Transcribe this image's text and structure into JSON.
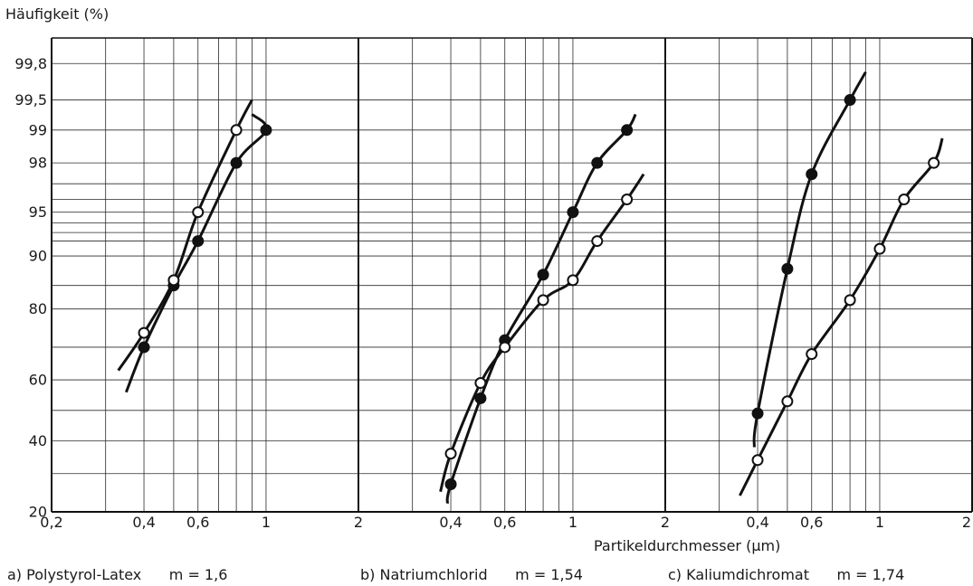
{
  "chart_data": {
    "type": "scatter",
    "ylabel": "Häufigkeit (%)",
    "xlabel": "Partikeldurchmesser (µm)",
    "yscale": "probability",
    "xscale": "log",
    "ytick_labels": [
      "20",
      "40",
      "60",
      "80",
      "90",
      "95",
      "98",
      "99",
      "99,5",
      "99,8"
    ],
    "ytick_values": [
      20,
      40,
      60,
      80,
      90,
      95,
      98,
      99,
      99.5,
      99.8
    ],
    "extra_gridlines_pct": [
      30,
      50,
      70,
      85,
      92,
      93,
      94,
      96,
      97
    ],
    "panels": [
      {
        "caption": "a) Polystyrol-Latex",
        "m_label": "m = 1,6",
        "xlim": [
          0.2,
          2
        ],
        "xtick_labels": [
          "0,2",
          "0,4",
          "0,6",
          "1",
          "2"
        ],
        "series": [
          {
            "marker": "filled",
            "x": [
              0.4,
              0.5,
              0.6,
              0.8,
              1.0
            ],
            "y": [
              70,
              85,
              92,
              98,
              99
            ],
            "curve_x": [
              0.35,
              0.9
            ],
            "curve_y": [
              56,
              99.3
            ]
          },
          {
            "marker": "open",
            "x": [
              0.4,
              0.5,
              0.6,
              0.8
            ],
            "y": [
              74,
              86,
              95,
              99
            ],
            "curve_x": [
              0.33,
              0.9
            ],
            "curve_y": [
              63,
              99.5
            ]
          }
        ]
      },
      {
        "caption": "b) Natriumchlorid",
        "m_label": "m = 1,54",
        "xlim": [
          0.2,
          2
        ],
        "xtick_labels": [
          "0,4",
          "0,6",
          "1",
          "2"
        ],
        "series": [
          {
            "marker": "filled",
            "x": [
              0.4,
              0.5,
              0.6,
              0.8,
              1.0,
              1.2,
              1.5
            ],
            "y": [
              27,
              54,
              72,
              87,
              95,
              98,
              99
            ],
            "curve_x": [
              0.39,
              1.6
            ],
            "curve_y": [
              22,
              99.3
            ]
          },
          {
            "marker": "open",
            "x": [
              0.4,
              0.5,
              0.6,
              0.8,
              1.0,
              1.2,
              1.5
            ],
            "y": [
              36,
              59,
              70,
              82,
              86,
              92,
              96
            ],
            "curve_x": [
              0.37,
              1.7
            ],
            "curve_y": [
              25,
              97.5
            ]
          }
        ]
      },
      {
        "caption": "c) Kaliumdichromat",
        "m_label": "m = 1,74",
        "xlim": [
          0.2,
          2
        ],
        "xtick_labels": [
          "0,4",
          "0,6",
          "1",
          "2"
        ],
        "series": [
          {
            "marker": "filled",
            "x": [
              0.4,
              0.5,
              0.6,
              0.8
            ],
            "y": [
              49,
              88,
              97.5,
              99.5
            ],
            "curve_x": [
              0.39,
              0.9
            ],
            "curve_y": [
              38,
              99.75
            ]
          },
          {
            "marker": "open",
            "x": [
              0.4,
              0.5,
              0.6,
              0.8,
              1.0,
              1.2,
              1.5
            ],
            "y": [
              34,
              53,
              68,
              82,
              91,
              96,
              98
            ],
            "curve_x": [
              0.35,
              1.6
            ],
            "curve_y": [
              24,
              98.8
            ]
          }
        ]
      }
    ]
  }
}
